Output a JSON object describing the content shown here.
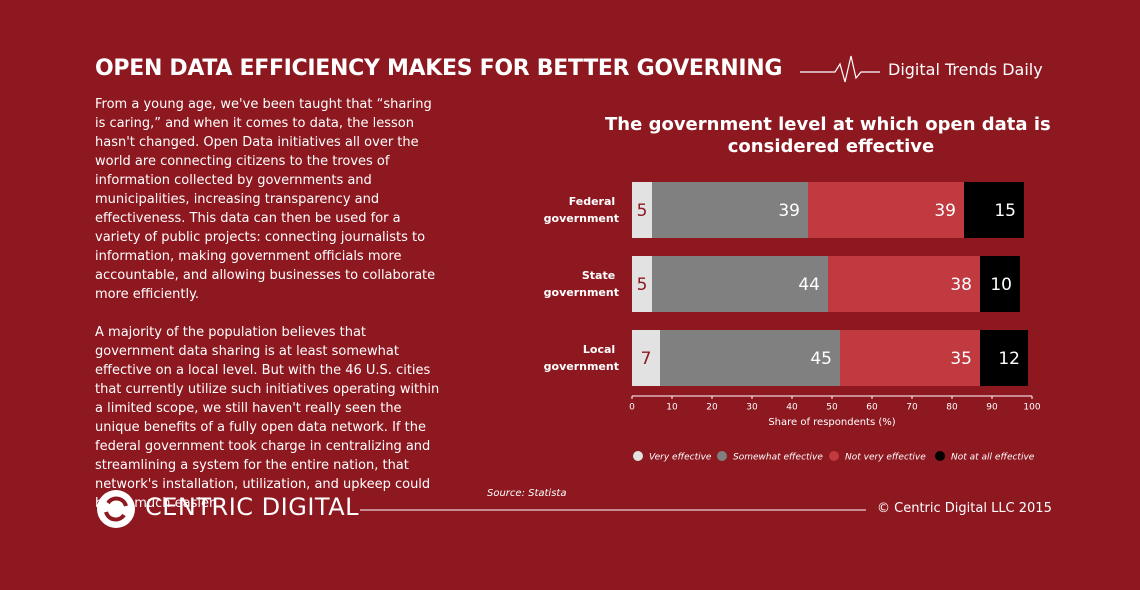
{
  "header": {
    "title": "OPEN DATA EFFICIENCY MAKES FOR BETTER GOVERNING",
    "brand": "Digital Trends Daily"
  },
  "body": {
    "paragraphs": [
      "From a young age, we've been taught that “sharing is caring,” and when it comes to data, the lesson hasn't changed. Open Data initiatives all over the world are connecting citizens to the troves of information collected by governments and municipalities, increasing transparency and effectiveness. This data can then be used for a variety of public projects: connecting journalists to information, making government officials more accountable, and allowing businesses to collaborate more efficiently.",
      "A majority of the population believes that government data sharing is at least somewhat effective on a local level. But with the 46 U.S. cities that currently utilize such initiatives operating within a limited scope, we still haven't really seen the unique benefits of a fully open data network. If the federal government took charge in centralizing and streamlining a system for the entire nation, that network's installation, utilization, and upkeep could be so much easier."
    ]
  },
  "footer": {
    "logo": "CENTRIC DIGITAL",
    "copyright": "© Centric Digital LLC 2015"
  },
  "chart_data": {
    "type": "stacked-bar-horizontal",
    "title": "The government level at which open data is considered effective",
    "source": "Source: Statista",
    "xlabel": "Share of respondents (%)",
    "categories": [
      "Federal government",
      "State government",
      "Local government"
    ],
    "series": [
      {
        "name": "Very effective",
        "color": "#e2e2e2",
        "label_color": "#8e1820",
        "values": [
          5,
          5,
          7
        ]
      },
      {
        "name": "Somewhat effective",
        "color": "#808080",
        "label_color": "#ffffff",
        "values": [
          39,
          44,
          45
        ]
      },
      {
        "name": "Not very effective",
        "color": "#c13a3f",
        "label_color": "#ffffff",
        "values": [
          39,
          38,
          35
        ]
      },
      {
        "name": "Not at all effective",
        "color": "#000000",
        "label_color": "#ffffff",
        "values": [
          15,
          10,
          12
        ]
      }
    ],
    "xlim": [
      0,
      100
    ],
    "xticks": [
      0,
      10,
      20,
      30,
      40,
      50,
      60,
      70,
      80,
      90,
      100
    ],
    "legend": "bottom"
  }
}
